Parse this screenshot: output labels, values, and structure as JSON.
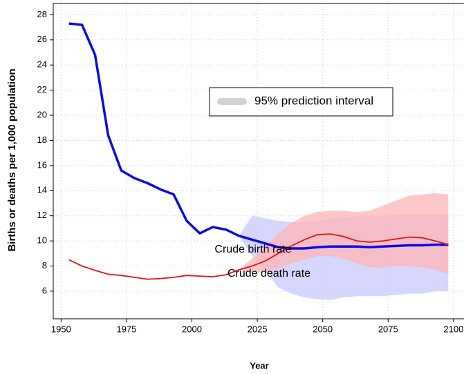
{
  "chart_data": {
    "type": "line",
    "x_label": "Year",
    "y_label": "Births or deaths per 1,000 population",
    "xlim": [
      1947,
      2104
    ],
    "ylim": [
      3.8,
      28.9
    ],
    "xticks": [
      1950,
      1975,
      2000,
      2025,
      2050,
      2075,
      2100
    ],
    "yticks": [
      6,
      8,
      10,
      12,
      14,
      16,
      18,
      20,
      22,
      24,
      26,
      28
    ],
    "grid": true,
    "x": [
      1953,
      1958,
      1963,
      1968,
      1973,
      1978,
      1983,
      1988,
      1993,
      1998,
      2003,
      2008,
      2013,
      2018,
      2023,
      2028,
      2033,
      2038,
      2043,
      2048,
      2053,
      2058,
      2063,
      2068,
      2073,
      2078,
      2083,
      2088,
      2093,
      2098
    ],
    "series": [
      {
        "name": "Crude birth rate",
        "color": "#0a0ae6",
        "width": 3.5,
        "values": [
          27.3,
          27.2,
          24.8,
          18.4,
          15.6,
          15.0,
          14.6,
          14.1,
          13.7,
          11.6,
          10.6,
          11.1,
          10.9,
          10.4,
          10.1,
          9.8,
          9.5,
          9.4,
          9.4,
          9.5,
          9.55,
          9.55,
          9.55,
          9.5,
          9.55,
          9.6,
          9.65,
          9.65,
          9.7,
          9.7
        ]
      },
      {
        "name": "Crude death rate",
        "color": "#e61010",
        "width": 1.8,
        "values": [
          8.5,
          8.0,
          7.65,
          7.35,
          7.25,
          7.1,
          6.95,
          7.0,
          7.1,
          7.25,
          7.2,
          7.15,
          7.3,
          7.7,
          8.0,
          8.4,
          9.0,
          9.6,
          10.1,
          10.5,
          10.55,
          10.35,
          10.0,
          9.9,
          10.0,
          10.15,
          10.3,
          10.25,
          10.0,
          9.7
        ]
      }
    ],
    "bands": [
      {
        "color": "#c8c8ff",
        "lower": [
          null,
          null,
          null,
          null,
          null,
          null,
          null,
          null,
          null,
          null,
          null,
          null,
          null,
          10.4,
          8.8,
          7.6,
          6.3,
          5.8,
          5.5,
          5.35,
          5.3,
          5.5,
          5.6,
          5.6,
          5.6,
          5.7,
          5.8,
          5.8,
          6.0,
          6.0
        ],
        "upper": [
          null,
          null,
          null,
          null,
          null,
          null,
          null,
          null,
          null,
          null,
          null,
          null,
          null,
          10.4,
          12.0,
          11.8,
          11.6,
          11.5,
          11.5,
          11.6,
          11.8,
          11.9,
          12.0,
          12.0,
          12.0,
          12.1,
          12.1,
          12.1,
          12.1,
          12.1
        ]
      },
      {
        "color": "#ffb4b4",
        "lower": [
          null,
          null,
          null,
          null,
          null,
          null,
          null,
          null,
          null,
          null,
          null,
          null,
          null,
          7.7,
          7.5,
          7.5,
          7.8,
          8.2,
          8.5,
          8.8,
          8.8,
          8.6,
          8.2,
          7.9,
          7.9,
          8.0,
          8.0,
          7.9,
          7.7,
          7.4
        ],
        "upper": [
          null,
          null,
          null,
          null,
          null,
          null,
          null,
          null,
          null,
          null,
          null,
          null,
          null,
          7.7,
          8.6,
          9.5,
          10.6,
          11.4,
          12.0,
          12.3,
          12.4,
          12.4,
          12.3,
          12.4,
          12.8,
          13.2,
          13.6,
          13.7,
          13.8,
          13.7
        ]
      }
    ],
    "legend": {
      "label": "95% prediction interval",
      "color": "#d3d3d3",
      "position": "upper center"
    }
  }
}
